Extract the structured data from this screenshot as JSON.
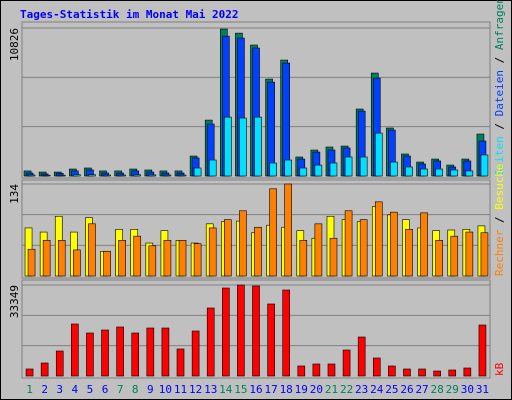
{
  "title": "Tages-Statistik im Monat Mai 2022",
  "separator": "/",
  "categories": [
    "1",
    "2",
    "3",
    "4",
    "5",
    "6",
    "7",
    "8",
    "9",
    "10",
    "11",
    "12",
    "13",
    "14",
    "15",
    "16",
    "17",
    "18",
    "19",
    "20",
    "21",
    "22",
    "23",
    "24",
    "25",
    "26",
    "27",
    "28",
    "29",
    "30",
    "31"
  ],
  "category_colors": [
    "#00805c",
    "#0000ff",
    "#0000ff",
    "#0000ff",
    "#0000ff",
    "#0000ff",
    "#00805c",
    "#00805c",
    "#0000ff",
    "#0000ff",
    "#0000ff",
    "#0000ff",
    "#0000ff",
    "#00805c",
    "#00805c",
    "#0000ff",
    "#0000ff",
    "#0000ff",
    "#0000ff",
    "#0000ff",
    "#00805c",
    "#00805c",
    "#0000ff",
    "#0000ff",
    "#0000ff",
    "#0000ff",
    "#0000ff",
    "#00805c",
    "#00805c",
    "#0000ff",
    "#0000ff"
  ],
  "chart_data": [
    {
      "type": "bar",
      "ylim": [
        0,
        10826
      ],
      "yticks": [
        10826
      ],
      "series": [
        {
          "name": "Anfragen",
          "color": "#00805c",
          "values": [
            370,
            290,
            290,
            510,
            585,
            370,
            370,
            510,
            440,
            370,
            370,
            1460,
            4090,
            10750,
            10450,
            9580,
            7090,
            8480,
            1390,
            1900,
            2120,
            2190,
            4900,
            7530,
            3510,
            1610,
            1020,
            1240,
            800,
            1240,
            3070
          ]
        },
        {
          "name": "Dateien",
          "color": "#0040ff",
          "values": [
            220,
            150,
            200,
            370,
            440,
            220,
            220,
            370,
            290,
            220,
            220,
            1320,
            3800,
            10230,
            10090,
            9360,
            6870,
            8260,
            1240,
            1750,
            1900,
            2050,
            4750,
            7160,
            3360,
            1460,
            880,
            1100,
            660,
            1100,
            2560
          ]
        },
        {
          "name": "Seiten",
          "color": "#00e0ff",
          "values": [
            75,
            60,
            60,
            100,
            100,
            70,
            70,
            90,
            80,
            70,
            70,
            585,
            1170,
            4310,
            4240,
            4310,
            950,
            1170,
            585,
            800,
            950,
            1390,
            1390,
            3140,
            1020,
            660,
            510,
            510,
            440,
            370,
            1540
          ]
        }
      ]
    },
    {
      "type": "bar",
      "ylim": [
        0,
        134
      ],
      "yticks": [
        134
      ],
      "series": [
        {
          "name": "Besuche",
          "color": "#ffff00",
          "values": [
            70,
            64,
            87,
            64,
            85,
            36,
            68,
            68,
            48,
            66,
            52,
            48,
            76,
            79,
            80,
            63,
            74,
            71,
            66,
            55,
            87,
            82,
            79,
            101,
            89,
            82,
            70,
            66,
            67,
            68,
            73
          ]
        },
        {
          "name": "Rechner",
          "color": "#ff8000",
          "values": [
            39,
            52,
            52,
            38,
            76,
            36,
            52,
            58,
            44,
            52,
            52,
            47,
            70,
            82,
            95,
            71,
            127,
            134,
            52,
            76,
            55,
            95,
            82,
            108,
            93,
            68,
            92,
            52,
            58,
            64,
            63
          ]
        }
      ]
    },
    {
      "type": "bar",
      "ylim": [
        0,
        33349
      ],
      "yticks": [
        33349
      ],
      "series": [
        {
          "name": "kB",
          "color": "#ff0000",
          "values": [
            2570,
            4760,
            9160,
            19060,
            15760,
            16860,
            17960,
            15760,
            17590,
            17590,
            9900,
            16490,
            24920,
            32250,
            33349,
            32990,
            26390,
            31520,
            3670,
            4400,
            4400,
            9530,
            14290,
            6600,
            3670,
            2570,
            2570,
            1830,
            2200,
            2930,
            18690
          ]
        }
      ]
    }
  ]
}
